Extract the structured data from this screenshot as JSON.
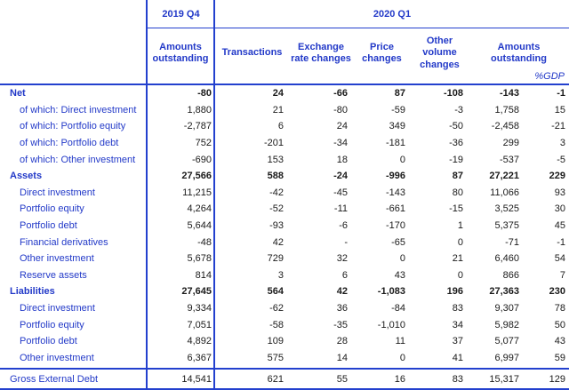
{
  "colors": {
    "accent_blue": "#2340ce",
    "text_blue": "#2239c8",
    "number_black": "#1a1a1a"
  },
  "table": {
    "header": {
      "period_2019": "2019 Q4",
      "period_2020": "2020 Q1",
      "col_amounts_2019": "Amounts outstanding",
      "col_transactions": "Transactions",
      "col_exchange_rate": "Exchange rate changes",
      "col_price": "Price changes",
      "col_other_volume": "Other volume changes",
      "col_amounts_2020": "Amounts outstanding",
      "col_gdp": "%GDP"
    },
    "rows": [
      {
        "label": "Net",
        "style": "total",
        "values": [
          "-80",
          "24",
          "-66",
          "87",
          "-108",
          "-143",
          "-1"
        ]
      },
      {
        "label": "of which: Direct investment",
        "style": "sub",
        "values": [
          "1,880",
          "21",
          "-80",
          "-59",
          "-3",
          "1,758",
          "15"
        ]
      },
      {
        "label": "of which: Portfolio equity",
        "style": "sub",
        "values": [
          "-2,787",
          "6",
          "24",
          "349",
          "-50",
          "-2,458",
          "-21"
        ]
      },
      {
        "label": "of which: Portfolio debt",
        "style": "sub",
        "values": [
          "752",
          "-201",
          "-34",
          "-181",
          "-36",
          "299",
          "3"
        ]
      },
      {
        "label": "of which: Other investment",
        "style": "sub",
        "values": [
          "-690",
          "153",
          "18",
          "0",
          "-19",
          "-537",
          "-5"
        ]
      },
      {
        "label": "Assets",
        "style": "total",
        "values": [
          "27,566",
          "588",
          "-24",
          "-996",
          "87",
          "27,221",
          "229"
        ]
      },
      {
        "label": "Direct investment",
        "style": "sub",
        "values": [
          "11,215",
          "-42",
          "-45",
          "-143",
          "80",
          "11,066",
          "93"
        ]
      },
      {
        "label": "Portfolio equity",
        "style": "sub",
        "values": [
          "4,264",
          "-52",
          "-11",
          "-661",
          "-15",
          "3,525",
          "30"
        ]
      },
      {
        "label": "Portfolio debt",
        "style": "sub",
        "values": [
          "5,644",
          "-93",
          "-6",
          "-170",
          "1",
          "5,375",
          "45"
        ]
      },
      {
        "label": "Financial derivatives",
        "style": "sub",
        "values": [
          "-48",
          "42",
          "-",
          "-65",
          "0",
          "-71",
          "-1"
        ]
      },
      {
        "label": "Other investment",
        "style": "sub",
        "values": [
          "5,678",
          "729",
          "32",
          "0",
          "21",
          "6,460",
          "54"
        ]
      },
      {
        "label": "Reserve assets",
        "style": "sub",
        "values": [
          "814",
          "3",
          "6",
          "43",
          "0",
          "866",
          "7"
        ]
      },
      {
        "label": "Liabilities",
        "style": "total",
        "values": [
          "27,645",
          "564",
          "42",
          "-1,083",
          "196",
          "27,363",
          "230"
        ]
      },
      {
        "label": "Direct investment",
        "style": "sub",
        "values": [
          "9,334",
          "-62",
          "36",
          "-84",
          "83",
          "9,307",
          "78"
        ]
      },
      {
        "label": "Portfolio equity",
        "style": "sub",
        "values": [
          "7,051",
          "-58",
          "-35",
          "-1,010",
          "34",
          "5,982",
          "50"
        ]
      },
      {
        "label": "Portfolio debt",
        "style": "sub",
        "values": [
          "4,892",
          "109",
          "28",
          "11",
          "37",
          "5,077",
          "43"
        ]
      },
      {
        "label": "Other investment",
        "style": "sub",
        "values": [
          "6,367",
          "575",
          "14",
          "0",
          "41",
          "6,997",
          "59"
        ]
      }
    ],
    "footer_row": {
      "label": "Gross External Debt",
      "values": [
        "14,541",
        "621",
        "55",
        "16",
        "83",
        "15,317",
        "129"
      ]
    }
  }
}
